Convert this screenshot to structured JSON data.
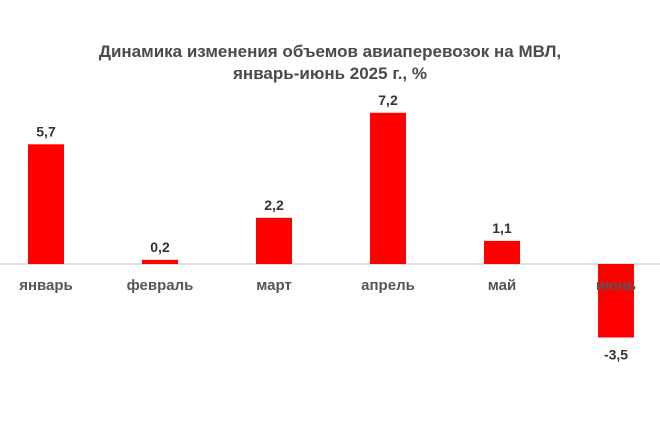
{
  "chart_data": {
    "type": "bar",
    "title_line1": "Динамика изменения объемов авиаперевозок на МВЛ,",
    "title_line2": "январь-июнь 2025 г., %",
    "categories": [
      "январь",
      "февраль",
      "март",
      "апрель",
      "май",
      "июнь"
    ],
    "values": [
      5.7,
      0.2,
      2.2,
      7.2,
      1.1,
      -3.5
    ],
    "value_labels": [
      "5,7",
      "0,2",
      "2,2",
      "7,2",
      "1,1",
      "-3,5"
    ],
    "xlabel": "",
    "ylabel": "",
    "grid": false,
    "legend": "none",
    "bar_color": "#ff0000",
    "axis_color": "#bfbfbf"
  }
}
